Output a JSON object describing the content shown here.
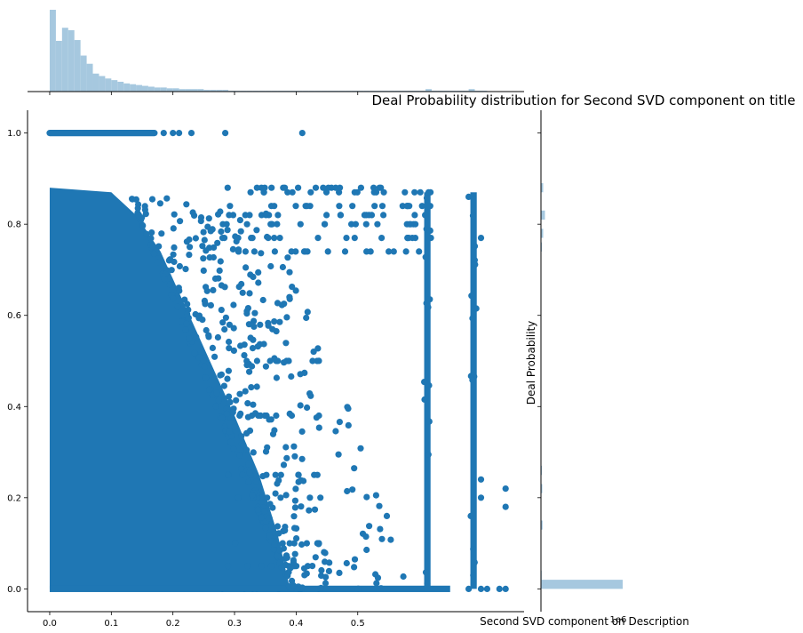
{
  "chart_data": {
    "type": "scatter",
    "title": "Deal Probability distribution for Second SVD component on title",
    "xlabel": "Second SVD component on Description",
    "ylabel": "Deal Probability",
    "xlim": [
      -0.036,
      0.77
    ],
    "ylim": [
      -0.05,
      1.05
    ],
    "x_ticks": [
      0.0,
      0.1,
      0.2,
      0.3,
      0.4,
      0.5
    ],
    "x_tick_labels": [
      "0.0",
      "0.1",
      "0.2",
      "0.3",
      "0.4",
      "0.5"
    ],
    "y_ticks": [
      0.0,
      0.2,
      0.4,
      0.6,
      0.8,
      1.0
    ],
    "y_tick_labels": [
      "0.0",
      "0.2",
      "0.4",
      "0.6",
      "0.8",
      "1.0"
    ],
    "marginal_offset_text": "1e6",
    "grid": false,
    "legend": "none",
    "colors": {
      "points": "#1f77b4",
      "hist": "#a6c8df"
    },
    "dense_region": {
      "x": [
        0.0,
        0.27
      ],
      "y": [
        0.0,
        0.88
      ]
    },
    "vertical_bands": [
      {
        "x": 0.613,
        "y": [
          0.0,
          0.87
        ]
      },
      {
        "x": 0.688,
        "y": [
          0.0,
          0.87
        ]
      }
    ],
    "horizontal_levels": [
      0.0,
      0.05,
      0.1,
      0.2,
      0.25,
      0.38,
      0.5,
      0.74,
      0.77,
      0.8,
      0.82,
      0.84,
      0.87,
      0.88
    ],
    "level_one_points_x": [
      0.0,
      0.17
    ],
    "x_marginal_hist": {
      "bin_start": 0.0,
      "bin_width": 0.01,
      "counts": [
        100,
        62,
        78,
        75,
        63,
        44,
        34,
        22,
        19,
        16,
        14,
        12,
        10,
        9,
        8,
        7,
        6,
        5,
        5,
        4,
        4,
        3,
        3,
        3,
        3,
        2,
        2,
        2,
        2,
        1,
        1,
        1,
        1,
        1,
        1,
        1,
        1,
        1,
        1,
        1,
        1,
        1,
        1,
        1,
        1,
        1,
        1,
        1,
        1,
        1,
        1,
        1,
        1,
        1,
        1,
        1,
        1,
        1,
        1,
        1,
        1,
        3,
        1,
        1,
        1,
        1,
        1,
        1,
        3,
        1,
        1
      ]
    },
    "y_marginal_hist": {
      "bins": [
        {
          "y": 0.0,
          "count": 92
        },
        {
          "y": 0.02,
          "count": 0.8
        },
        {
          "y": 0.13,
          "count": 1.8
        },
        {
          "y": 0.21,
          "count": 1.5
        },
        {
          "y": 0.25,
          "count": 1.0
        },
        {
          "y": 0.74,
          "count": 1.0
        },
        {
          "y": 0.77,
          "count": 2.5
        },
        {
          "y": 0.81,
          "count": 4.5
        },
        {
          "y": 0.87,
          "count": 2.5
        }
      ]
    }
  }
}
